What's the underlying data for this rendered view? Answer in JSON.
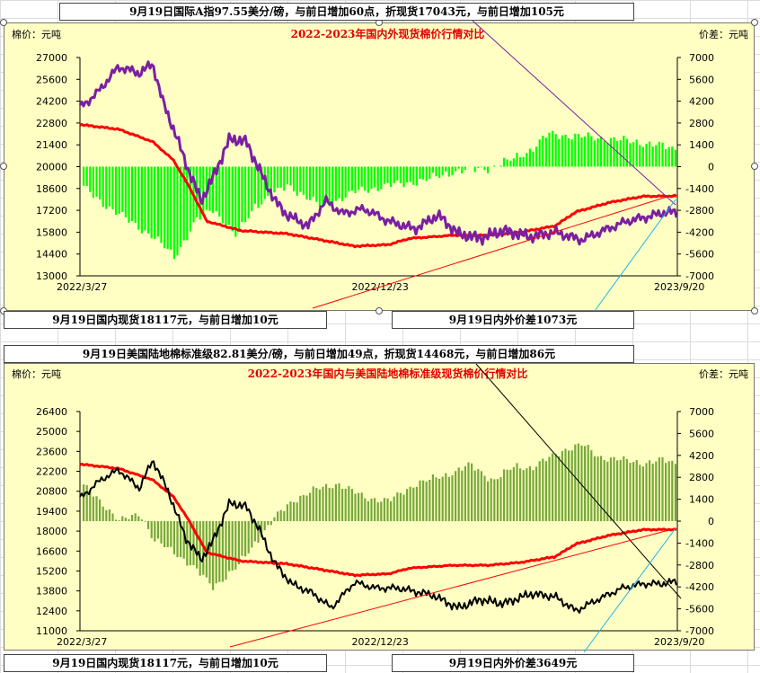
{
  "textboxes": {
    "top_index": "9月19日国际A指97.55美分/磅，与前日增加60点，折现货17043元，与前日增加105元",
    "top_domestic": "9月19日国内现货18117元，与前日增加10元",
    "top_spread": "9月19日内外价差1073元",
    "bottom_index": "9月19日美国陆地棉标准级82.81美分/磅，与前日增加49点，折现货14468元，与前日增加86元",
    "bottom_domestic": "9月19日国内现货18117元，与前日增加10元",
    "bottom_spread": "9月19日内外价差3649元"
  },
  "colors": {
    "panel_bg": "#ffffc4",
    "title_red": "#e00000",
    "domestic_red": "#ff0000",
    "intl_purple": "#7b1fa2",
    "us_black": "#000000",
    "spread_green_top": "#00ff00",
    "spread_green_bottom": "#77a83c"
  },
  "chart_data": [
    {
      "type": "line+bar",
      "title": "2022-2023年国内外现货棉价行情对比",
      "ylabel_left": "棉价：元吨",
      "ylabel_right": "价差：元吨",
      "y_left_ticks": [
        "27000",
        "25600",
        "24200",
        "22800",
        "21400",
        "20000",
        "18600",
        "17200",
        "15800",
        "14400",
        "13000"
      ],
      "y_right_ticks": [
        "7000",
        "5600",
        "4200",
        "2800",
        "1400",
        "0",
        "-1400",
        "-2800",
        "-4200",
        "-5600",
        "-7000"
      ],
      "ylim_left": [
        13000,
        27000
      ],
      "ylim_right": [
        -7000,
        7000
      ],
      "x_labels": [
        "2022/3/27",
        "2022/12/23",
        "2023/9/20"
      ],
      "x_range": [
        "2022-03-27",
        "2023-09-20"
      ],
      "series": [
        {
          "role": "domestic",
          "color": "#ff0000",
          "points": [
            [
              "2022-03-27",
              22700
            ],
            [
              "2022-05-01",
              22400
            ],
            [
              "2022-06-01",
              21600
            ],
            [
              "2022-06-20",
              20400
            ],
            [
              "2022-07-05",
              18600
            ],
            [
              "2022-07-20",
              16500
            ],
            [
              "2022-08-20",
              15900
            ],
            [
              "2022-10-01",
              15700
            ],
            [
              "2022-11-01",
              15300
            ],
            [
              "2022-12-01",
              14900
            ],
            [
              "2023-01-01",
              15000
            ],
            [
              "2023-01-20",
              15400
            ],
            [
              "2023-03-01",
              15600
            ],
            [
              "2023-04-01",
              15600
            ],
            [
              "2023-05-01",
              15800
            ],
            [
              "2023-06-01",
              16200
            ],
            [
              "2023-06-20",
              17100
            ],
            [
              "2023-07-20",
              17700
            ],
            [
              "2023-08-20",
              18100
            ],
            [
              "2023-09-20",
              18117
            ]
          ]
        },
        {
          "role": "international",
          "color": "#7b1fa2",
          "points": [
            [
              "2022-03-27",
              23800
            ],
            [
              "2022-04-10",
              24600
            ],
            [
              "2022-05-01",
              26400
            ],
            [
              "2022-05-20",
              26000
            ],
            [
              "2022-06-01",
              26600
            ],
            [
              "2022-06-10",
              24200
            ],
            [
              "2022-06-20",
              22400
            ],
            [
              "2022-07-05",
              19500
            ],
            [
              "2022-07-15",
              17800
            ],
            [
              "2022-07-25",
              19200
            ],
            [
              "2022-08-10",
              21800
            ],
            [
              "2022-08-25",
              21600
            ],
            [
              "2022-09-05",
              19900
            ],
            [
              "2022-09-20",
              17800
            ],
            [
              "2022-10-01",
              16900
            ],
            [
              "2022-10-20",
              16200
            ],
            [
              "2022-11-05",
              17800
            ],
            [
              "2022-11-20",
              17000
            ],
            [
              "2022-12-10",
              17300
            ],
            [
              "2023-01-01",
              16500
            ],
            [
              "2023-01-25",
              16000
            ],
            [
              "2023-02-15",
              16900
            ],
            [
              "2023-03-05",
              15700
            ],
            [
              "2023-03-25",
              15400
            ],
            [
              "2023-04-15",
              15900
            ],
            [
              "2023-05-10",
              15500
            ],
            [
              "2023-06-01",
              15800
            ],
            [
              "2023-06-25",
              15300
            ],
            [
              "2023-07-15",
              15900
            ],
            [
              "2023-08-05",
              16500
            ],
            [
              "2023-08-25",
              16800
            ],
            [
              "2023-09-10",
              17100
            ],
            [
              "2023-09-20",
              17043
            ]
          ]
        },
        {
          "role": "spread",
          "color": "#00ff00",
          "points": [
            [
              "2022-03-27",
              -1200
            ],
            [
              "2022-04-15",
              -2300
            ],
            [
              "2022-05-10",
              -3500
            ],
            [
              "2022-06-01",
              -4500
            ],
            [
              "2022-06-20",
              -5800
            ],
            [
              "2022-07-10",
              -3400
            ],
            [
              "2022-07-25",
              -2700
            ],
            [
              "2022-08-15",
              -4500
            ],
            [
              "2022-09-01",
              -2500
            ],
            [
              "2022-10-01",
              -1200
            ],
            [
              "2022-11-01",
              -2600
            ],
            [
              "2022-12-01",
              -1600
            ],
            [
              "2023-01-01",
              -1200
            ],
            [
              "2023-02-01",
              -900
            ],
            [
              "2023-03-01",
              -300
            ],
            [
              "2023-04-01",
              -100
            ],
            [
              "2023-04-20",
              400
            ],
            [
              "2023-05-10",
              1100
            ],
            [
              "2023-05-25",
              2100
            ],
            [
              "2023-06-10",
              2000
            ],
            [
              "2023-07-01",
              1900
            ],
            [
              "2023-08-01",
              1700
            ],
            [
              "2023-09-01",
              1400
            ],
            [
              "2023-09-20",
              1073
            ]
          ]
        }
      ]
    },
    {
      "type": "line+bar",
      "title": "2022-2023年国内与美国陆地棉标准级现货棉价行情对比",
      "ylabel_left": "棉价：元吨",
      "ylabel_right": "价差：元吨",
      "y_left_ticks": [
        "26400",
        "25000",
        "23600",
        "22200",
        "20800",
        "19400",
        "18000",
        "16600",
        "15200",
        "13800",
        "12400",
        "11000"
      ],
      "y_right_ticks": [
        "7000",
        "5600",
        "4200",
        "2800",
        "1400",
        "0",
        "-1400",
        "-2800",
        "-4200",
        "-5600",
        "-7000"
      ],
      "ylim_left": [
        11000,
        26400
      ],
      "ylim_right": [
        -7000,
        7000
      ],
      "x_labels": [
        "2022/3/27",
        "2022/12/23",
        "2023/9/20"
      ],
      "x_range": [
        "2022-03-27",
        "2023-09-20"
      ],
      "series": [
        {
          "role": "domestic",
          "color": "#ff0000",
          "points": [
            [
              "2022-03-27",
              22700
            ],
            [
              "2022-05-01",
              22400
            ],
            [
              "2022-06-01",
              21600
            ],
            [
              "2022-06-20",
              20400
            ],
            [
              "2022-07-05",
              18600
            ],
            [
              "2022-07-20",
              16500
            ],
            [
              "2022-08-20",
              15900
            ],
            [
              "2022-10-01",
              15700
            ],
            [
              "2022-11-01",
              15300
            ],
            [
              "2022-12-01",
              14900
            ],
            [
              "2023-01-01",
              15000
            ],
            [
              "2023-01-20",
              15400
            ],
            [
              "2023-03-01",
              15600
            ],
            [
              "2023-04-01",
              15600
            ],
            [
              "2023-05-01",
              15800
            ],
            [
              "2023-06-01",
              16200
            ],
            [
              "2023-06-20",
              17100
            ],
            [
              "2023-07-20",
              17700
            ],
            [
              "2023-08-20",
              18100
            ],
            [
              "2023-09-20",
              18117
            ]
          ]
        },
        {
          "role": "us_upland",
          "color": "#000000",
          "points": [
            [
              "2022-03-27",
              20300
            ],
            [
              "2022-04-15",
              21600
            ],
            [
              "2022-05-01",
              22300
            ],
            [
              "2022-05-20",
              21000
            ],
            [
              "2022-06-01",
              23000
            ],
            [
              "2022-06-15",
              20800
            ],
            [
              "2022-07-01",
              17500
            ],
            [
              "2022-07-15",
              16000
            ],
            [
              "2022-07-25",
              17200
            ],
            [
              "2022-08-10",
              20000
            ],
            [
              "2022-08-25",
              19700
            ],
            [
              "2022-09-05",
              18200
            ],
            [
              "2022-09-20",
              15700
            ],
            [
              "2022-10-05",
              14300
            ],
            [
              "2022-10-25",
              13600
            ],
            [
              "2022-11-10",
              12600
            ],
            [
              "2022-12-01",
              14400
            ],
            [
              "2022-12-20",
              14000
            ],
            [
              "2023-01-10",
              14000
            ],
            [
              "2023-02-10",
              13500
            ],
            [
              "2023-03-05",
              12600
            ],
            [
              "2023-03-25",
              13200
            ],
            [
              "2023-04-15",
              12900
            ],
            [
              "2023-05-10",
              13600
            ],
            [
              "2023-06-01",
              13400
            ],
            [
              "2023-06-20",
              12400
            ],
            [
              "2023-07-10",
              13200
            ],
            [
              "2023-08-01",
              14000
            ],
            [
              "2023-08-20",
              14300
            ],
            [
              "2023-09-05",
              14300
            ],
            [
              "2023-09-20",
              14468
            ]
          ]
        },
        {
          "role": "spread",
          "color": "#77a83c",
          "points": [
            [
              "2022-03-27",
              2400
            ],
            [
              "2022-04-15",
              1200
            ],
            [
              "2022-05-01",
              0
            ],
            [
              "2022-05-20",
              500
            ],
            [
              "2022-06-01",
              -1200
            ],
            [
              "2022-06-20",
              -2000
            ],
            [
              "2022-07-05",
              -2800
            ],
            [
              "2022-07-25",
              -4200
            ],
            [
              "2022-08-15",
              -3000
            ],
            [
              "2022-09-01",
              -1400
            ],
            [
              "2022-09-20",
              300
            ],
            [
              "2022-10-05",
              1300
            ],
            [
              "2022-10-25",
              2000
            ],
            [
              "2022-11-15",
              2400
            ],
            [
              "2022-12-10",
              1500
            ],
            [
              "2023-01-01",
              1300
            ],
            [
              "2023-01-25",
              2400
            ],
            [
              "2023-02-20",
              2900
            ],
            [
              "2023-03-15",
              3600
            ],
            [
              "2023-04-05",
              2600
            ],
            [
              "2023-04-25",
              3500
            ],
            [
              "2023-05-10",
              3400
            ],
            [
              "2023-05-25",
              4000
            ],
            [
              "2023-06-10",
              4600
            ],
            [
              "2023-06-25",
              4900
            ],
            [
              "2023-07-10",
              4100
            ],
            [
              "2023-08-01",
              3900
            ],
            [
              "2023-08-20",
              3700
            ],
            [
              "2023-09-05",
              3900
            ],
            [
              "2023-09-20",
              3649
            ]
          ]
        }
      ]
    }
  ]
}
